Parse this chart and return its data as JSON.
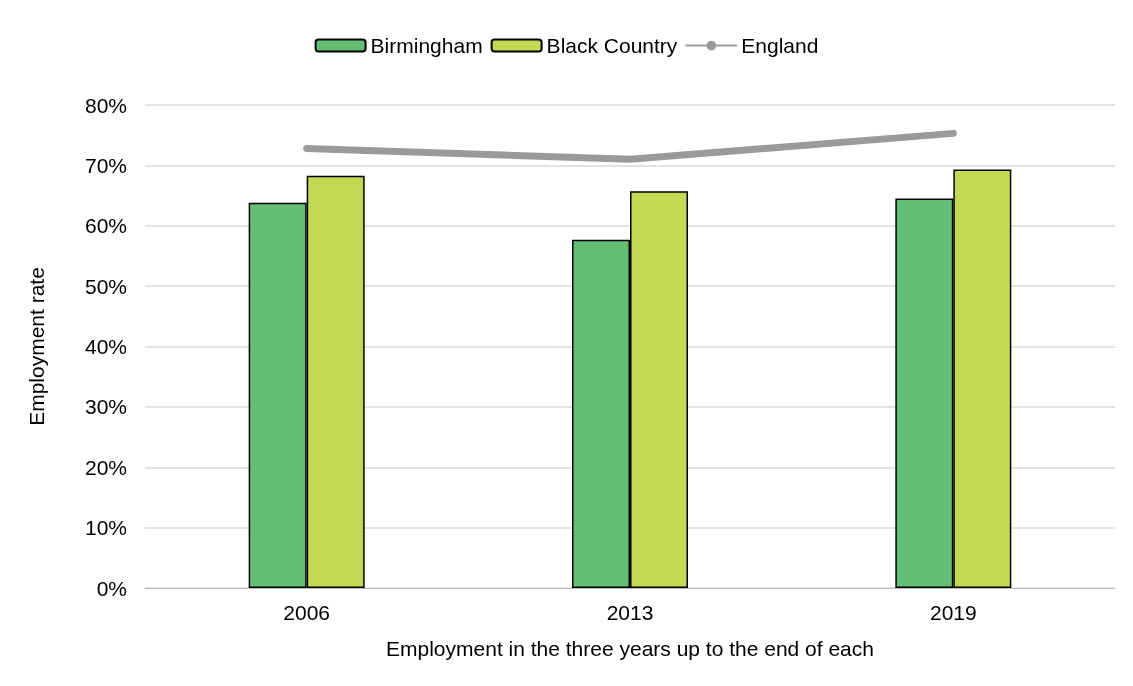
{
  "chart_data": {
    "type": "bar",
    "xlabel": "Employment in the three years up to the end of each",
    "ylabel": "Employment rate",
    "categories": [
      "2006",
      "2013",
      "2019"
    ],
    "series": [
      {
        "name": "Birmingham",
        "color": "#62bf73",
        "values": [
          63.8,
          57.7,
          64.5
        ]
      },
      {
        "name": "Black Country",
        "color": "#c2d951",
        "values": [
          68.3,
          65.7,
          69.3
        ]
      },
      {
        "name": "England",
        "type": "line",
        "color": "#999b9b",
        "values": [
          72.8,
          71.0,
          75.3
        ]
      }
    ],
    "ylim": [
      0,
      80
    ],
    "yticks": [
      {
        "value": 0,
        "label": "0%"
      },
      {
        "value": 10,
        "label": "10%"
      },
      {
        "value": 20,
        "label": "20%"
      },
      {
        "value": 30,
        "label": "30%"
      },
      {
        "value": 40,
        "label": "40%"
      },
      {
        "value": 50,
        "label": "50%"
      },
      {
        "value": 60,
        "label": "60%"
      },
      {
        "value": 70,
        "label": "70%"
      },
      {
        "value": 80,
        "label": "80%"
      }
    ],
    "grid": "y",
    "legend": "top",
    "marker": "none"
  }
}
